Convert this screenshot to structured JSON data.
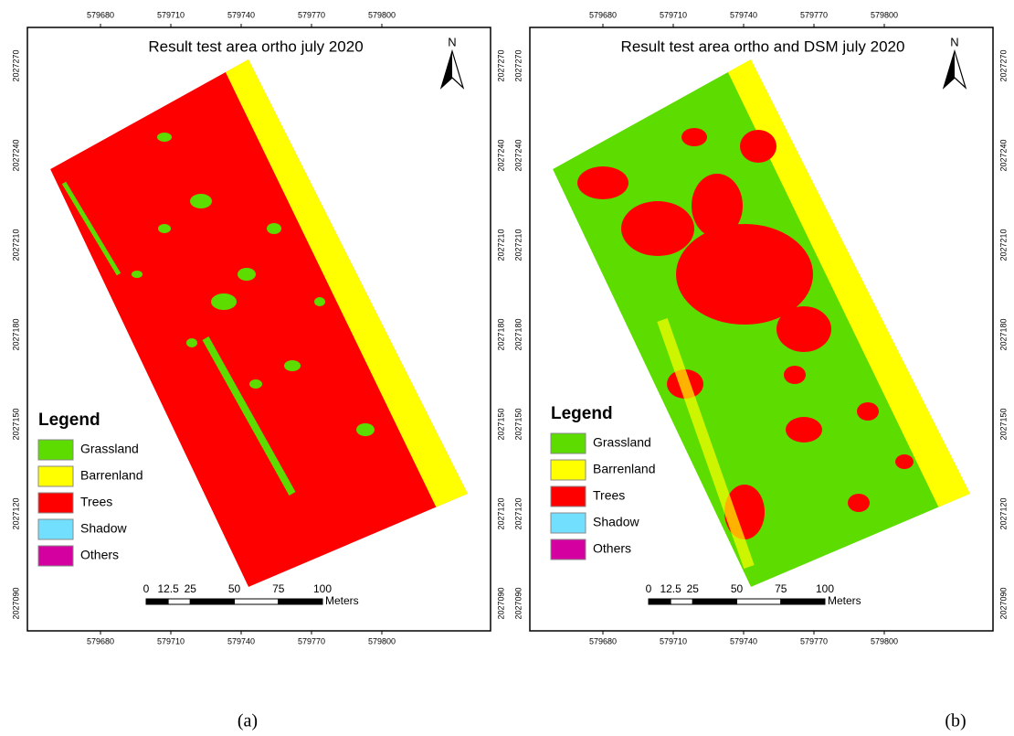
{
  "panels": [
    {
      "title": "Result test area ortho july 2020",
      "caption": "(a)",
      "north": "N",
      "x_ticks": [
        "579680",
        "579710",
        "579740",
        "579770",
        "579800"
      ],
      "y_ticks": [
        "2027270",
        "2027240",
        "2027210",
        "2027180",
        "2027150",
        "2027120",
        "2027090"
      ],
      "legend": {
        "title": "Legend",
        "items": [
          {
            "label": "Grassland",
            "color": "#5ddc00"
          },
          {
            "label": "Barrenland",
            "color": "#ffff00"
          },
          {
            "label": "Trees",
            "color": "#ff0000"
          },
          {
            "label": "Shadow",
            "color": "#73dfff"
          },
          {
            "label": "Others",
            "color": "#d400a0"
          }
        ]
      },
      "scale": {
        "ticks": [
          "0",
          "12.5",
          "25",
          "50",
          "75",
          "100"
        ],
        "unit": "Meters"
      }
    },
    {
      "title": "Result test area ortho and DSM july 2020",
      "caption": "(b)",
      "north": "N",
      "x_ticks": [
        "579680",
        "579710",
        "579740",
        "579770",
        "579800"
      ],
      "y_ticks": [
        "2027270",
        "2027240",
        "2027210",
        "2027180",
        "2027150",
        "2027120",
        "2027090"
      ],
      "legend": {
        "title": "Legend",
        "items": [
          {
            "label": "Grassland",
            "color": "#5ddc00"
          },
          {
            "label": "Barrenland",
            "color": "#ffff00"
          },
          {
            "label": "Trees",
            "color": "#ff0000"
          },
          {
            "label": "Shadow",
            "color": "#73dfff"
          },
          {
            "label": "Others",
            "color": "#d400a0"
          }
        ]
      },
      "scale": {
        "ticks": [
          "0",
          "12.5",
          "25",
          "50",
          "75",
          "100"
        ],
        "unit": "Meters"
      }
    }
  ]
}
